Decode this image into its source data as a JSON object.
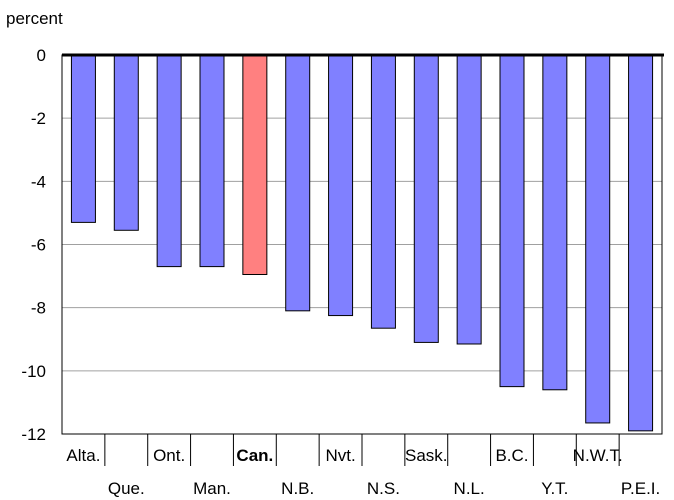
{
  "chart_data": {
    "type": "bar",
    "ylabel": "percent",
    "ylim": [
      -12,
      0
    ],
    "yticks": [
      0,
      -2,
      -4,
      -6,
      -8,
      -10,
      -12
    ],
    "grid": true,
    "categories": [
      "Alta.",
      "Que.",
      "Ont.",
      "Man.",
      "Can.",
      "N.B.",
      "Nvt.",
      "N.S.",
      "Sask.",
      "N.L.",
      "B.C.",
      "Y.T.",
      "N.W.T.",
      "P.E.I."
    ],
    "values": [
      -5.3,
      -5.55,
      -6.7,
      -6.7,
      -6.95,
      -8.1,
      -8.25,
      -8.65,
      -9.1,
      -9.15,
      -10.5,
      -10.6,
      -11.65,
      -11.9
    ],
    "highlight_category": "Can.",
    "colors": {
      "bar": "#8080ff",
      "highlight": "#ff8080",
      "bar_stroke": "#000000",
      "grid": "#a0a0a0",
      "axis": "#000000"
    }
  }
}
